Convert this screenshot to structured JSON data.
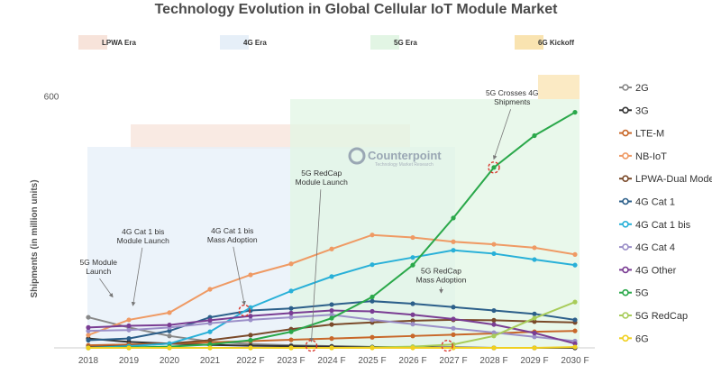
{
  "chart_data": {
    "type": "line",
    "title": "Technology Evolution in Global Cellular IoT Module Market",
    "ylabel": "Shipments (in million units)",
    "xlabel": "",
    "yticks": [
      "600"
    ],
    "ylim": [
      0,
      620
    ],
    "x": [
      "2018",
      "2019",
      "2020",
      "2021",
      "2022 F",
      "2023 F",
      "2024 F",
      "2025 F",
      "2026 F",
      "2027 F",
      "2028 F",
      "2029 F",
      "2030 F"
    ],
    "eras": [
      {
        "name": "LPWA Era",
        "color": "#f7e3da",
        "from": 1,
        "to": 6
      },
      {
        "name": "4G Era",
        "color": "#e6eff8",
        "from": 0,
        "to": 7
      },
      {
        "name": "5G Era",
        "color": "#e2f5e4",
        "from": 4,
        "to": 12
      },
      {
        "name": "6G Kickoff",
        "color": "#f9e3b0",
        "from": 11.5,
        "to": 12
      }
    ],
    "watermark": {
      "brand": "Counterpoint",
      "tagline": "Technology Market Research"
    },
    "series": [
      {
        "name": "2G",
        "color": "#888888",
        "values": [
          72,
          48,
          28,
          15,
          9,
          6,
          4,
          2,
          1,
          1,
          0,
          0,
          0
        ]
      },
      {
        "name": "3G",
        "color": "#333333",
        "values": [
          22,
          14,
          10,
          7,
          5,
          4,
          3,
          2,
          1,
          1,
          0,
          0,
          0
        ]
      },
      {
        "name": "LTE-M",
        "color": "#c8682a",
        "values": [
          6,
          8,
          10,
          13,
          16,
          19,
          22,
          25,
          28,
          31,
          34,
          38,
          40
        ]
      },
      {
        "name": "NB-IoT",
        "color": "#ef9a64",
        "values": [
          30,
          66,
          83,
          138,
          172,
          198,
          233,
          266,
          260,
          250,
          244,
          236,
          220
        ]
      },
      {
        "name": "LPWA-Dual Mode",
        "color": "#7a4a2a",
        "values": [
          2,
          5,
          10,
          18,
          30,
          44,
          55,
          60,
          64,
          66,
          65,
          62,
          60
        ]
      },
      {
        "name": "4G Cat 1",
        "color": "#2c5f8a",
        "values": [
          18,
          22,
          40,
          72,
          88,
          93,
          102,
          110,
          104,
          96,
          88,
          80,
          66
        ]
      },
      {
        "name": "4G Cat 1 bis",
        "color": "#28b0d8",
        "values": [
          0,
          4,
          10,
          38,
          95,
          134,
          168,
          196,
          213,
          230,
          222,
          208,
          195
        ]
      },
      {
        "name": "4G Cat 4",
        "color": "#9b8fc8",
        "values": [
          40,
          42,
          48,
          58,
          66,
          72,
          78,
          66,
          56,
          46,
          36,
          26,
          16
        ]
      },
      {
        "name": "4G Other",
        "color": "#7a3d93",
        "values": [
          48,
          52,
          54,
          65,
          75,
          82,
          88,
          86,
          78,
          68,
          55,
          35,
          10
        ]
      },
      {
        "name": "5G",
        "color": "#2aa84a",
        "values": [
          0,
          1,
          3,
          8,
          18,
          38,
          70,
          120,
          195,
          306,
          425,
          500,
          555
        ]
      },
      {
        "name": "5G RedCap",
        "color": "#a8cc5a",
        "values": [
          0,
          0,
          0,
          0,
          0,
          0,
          0,
          1,
          3,
          8,
          28,
          70,
          108
        ]
      },
      {
        "name": "6G",
        "color": "#f0d020",
        "values": [
          0,
          0,
          0,
          0,
          0,
          0,
          0,
          0,
          0,
          0,
          0,
          0,
          2
        ]
      }
    ],
    "annotations": [
      {
        "lines": [
          "5G Module",
          "Launch"
        ],
        "x": 0.25,
        "y": 195,
        "arrow_x": 0.6,
        "arrow_y": 120
      },
      {
        "lines": [
          "4G Cat 1 bis",
          "Module Launch"
        ],
        "x": 1.35,
        "y": 268,
        "arrow_x": 1.1,
        "arrow_y": 100
      },
      {
        "lines": [
          "4G Cat 1 bis",
          "Mass Adoption"
        ],
        "x": 3.55,
        "y": 270,
        "arrow_x": 3.85,
        "arrow_y": 102
      },
      {
        "lines": [
          "5G RedCap",
          "Module Launch"
        ],
        "x": 5.75,
        "y": 405,
        "arrow_x": 5.5,
        "arrow_y": 15
      },
      {
        "lines": [
          "5G RedCap",
          "Mass Adoption"
        ],
        "x": 8.7,
        "y": 175,
        "arrow_x": 8.7,
        "arrow_y": 130
      },
      {
        "lines": [
          "5G Crosses 4G",
          "Shipments"
        ],
        "x": 10.45,
        "y": 594,
        "arrow_x": 10.0,
        "arrow_y": 445
      }
    ],
    "highlights": [
      {
        "x": 3.85,
        "y": 88
      },
      {
        "x": 5.5,
        "y": 5
      },
      {
        "x": 8.85,
        "y": 5
      },
      {
        "x": 10.0,
        "y": 425
      }
    ]
  }
}
